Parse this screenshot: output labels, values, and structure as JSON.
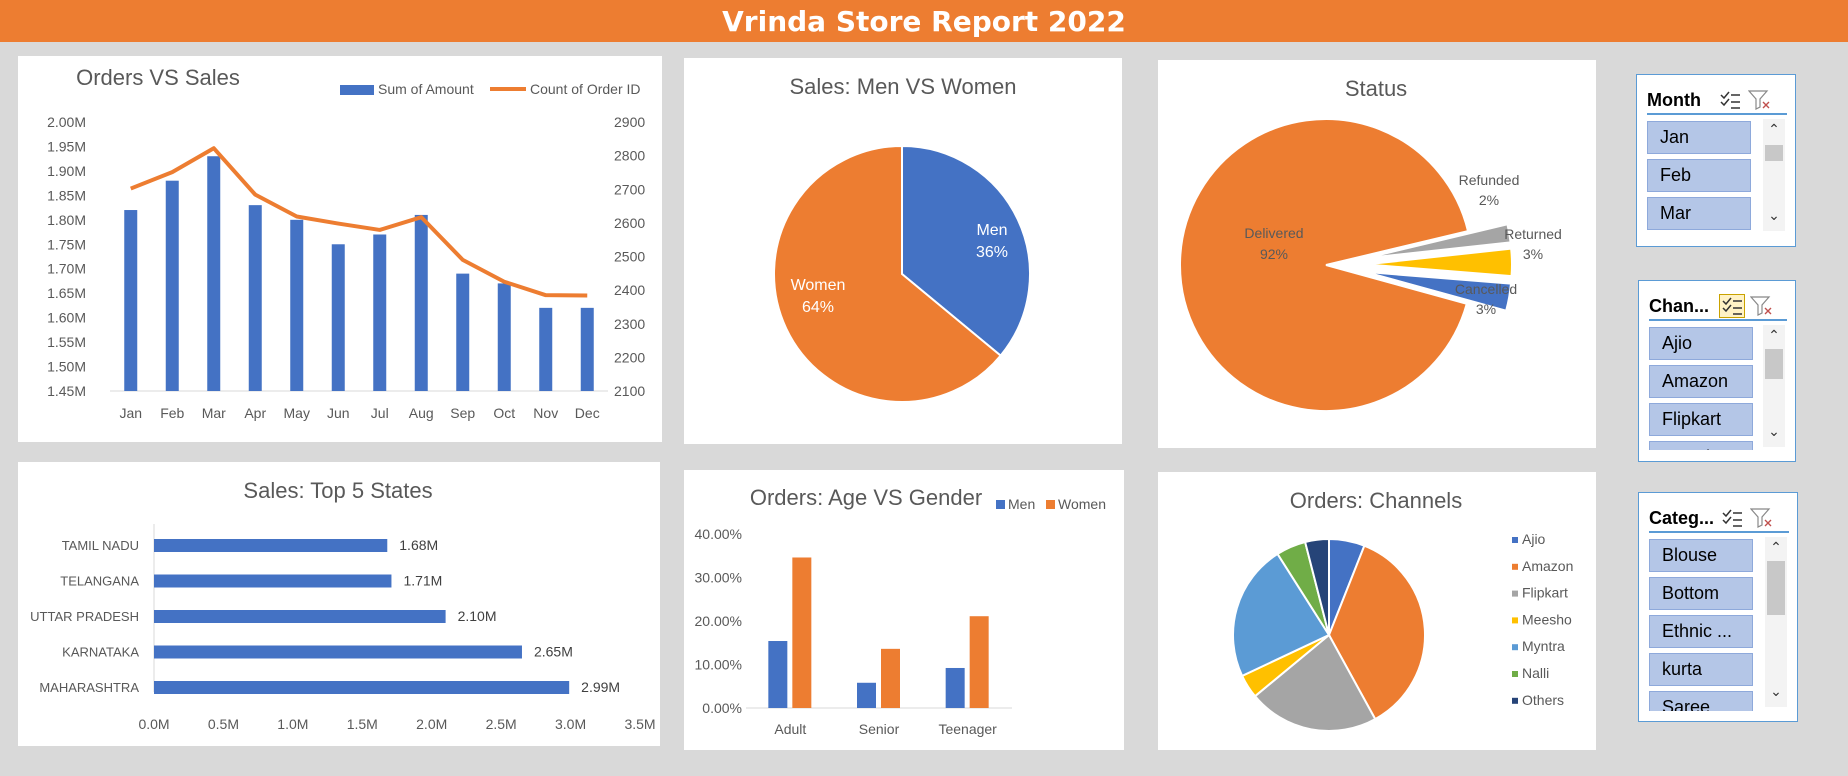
{
  "report_title": "Vrinda Store Report 2022",
  "colors": {
    "orange": "#ed7d31",
    "blue": "#4472c4",
    "gray": "#a5a5a5",
    "yellow": "#ffc000",
    "lightblue": "#5b9bd5",
    "green": "#70ad47",
    "navy": "#264478"
  },
  "orders_vs_sales": {
    "title": "Orders VS Sales",
    "legend": [
      "Sum of Amount",
      "Count of Order ID"
    ],
    "chart_data": {
      "type": "bar",
      "categories": [
        "Jan",
        "Feb",
        "Mar",
        "Apr",
        "May",
        "Jun",
        "Jul",
        "Aug",
        "Sep",
        "Oct",
        "Nov",
        "Dec"
      ],
      "series": [
        {
          "name": "Sum of Amount",
          "values": [
            1.82,
            1.88,
            1.93,
            1.83,
            1.8,
            1.75,
            1.77,
            1.81,
            1.69,
            1.67,
            1.62,
            1.62
          ]
        },
        {
          "name": "Count of Order ID",
          "type": "line",
          "values": [
            2702,
            2751,
            2822,
            2684,
            2619,
            2598,
            2579,
            2617,
            2490,
            2425,
            2385,
            2384
          ]
        }
      ],
      "left_axis": {
        "ticks": [
          "2.00M",
          "1.95M",
          "1.90M",
          "1.85M",
          "1.80M",
          "1.75M",
          "1.70M",
          "1.65M",
          "1.60M",
          "1.55M",
          "1.50M",
          "1.45M"
        ],
        "ylim": [
          1.45,
          2.0
        ]
      },
      "right_axis": {
        "ticks": [
          "2900",
          "2800",
          "2700",
          "2600",
          "2500",
          "2400",
          "2300",
          "2200",
          "2100"
        ],
        "ylim": [
          2100,
          2900
        ]
      }
    }
  },
  "men_vs_women": {
    "title": "Sales: Men VS Women",
    "chart_data": {
      "type": "pie",
      "slices": [
        {
          "label": "Men",
          "value": 36,
          "text": "36%"
        },
        {
          "label": "Women",
          "value": 64,
          "text": "64%"
        }
      ]
    }
  },
  "status": {
    "title": "Status",
    "chart_data": {
      "type": "pie",
      "slices": [
        {
          "label": "Delivered",
          "value": 92,
          "text": "92%"
        },
        {
          "label": "Refunded",
          "value": 2,
          "text": "2%"
        },
        {
          "label": "Returned",
          "value": 3,
          "text": "3%"
        },
        {
          "label": "Cancelled",
          "value": 3,
          "text": "3%"
        }
      ]
    }
  },
  "top_states": {
    "title": "Sales: Top 5 States",
    "chart_data": {
      "type": "bar",
      "orientation": "horizontal",
      "categories": [
        "TAMIL NADU",
        "TELANGANA",
        "UTTAR PRADESH",
        "KARNATAKA",
        "MAHARASHTRA"
      ],
      "values": [
        1.68,
        1.71,
        2.1,
        2.65,
        2.99
      ],
      "value_labels": [
        "1.68M",
        "1.71M",
        "2.10M",
        "2.65M",
        "2.99M"
      ],
      "x_ticks": [
        "0.0M",
        "0.5M",
        "1.0M",
        "1.5M",
        "2.0M",
        "2.5M",
        "3.0M",
        "3.5M"
      ],
      "xlim": [
        0,
        3.5
      ]
    }
  },
  "age_vs_gender": {
    "title": "Orders: Age VS Gender",
    "legend": [
      "Men",
      "Women"
    ],
    "chart_data": {
      "type": "bar",
      "categories": [
        "Adult",
        "Senior",
        "Teenager"
      ],
      "series": [
        {
          "name": "Men",
          "values": [
            15.4,
            5.8,
            9.2
          ]
        },
        {
          "name": "Women",
          "values": [
            34.6,
            13.6,
            21.1
          ]
        }
      ],
      "y_ticks": [
        "40.00%",
        "30.00%",
        "20.00%",
        "10.00%",
        "0.00%"
      ],
      "ylim": [
        0,
        40
      ]
    }
  },
  "channels": {
    "title": "Orders: Channels",
    "chart_data": {
      "type": "pie",
      "slices": [
        {
          "label": "Ajio",
          "value": 6
        },
        {
          "label": "Amazon",
          "value": 36
        },
        {
          "label": "Flipkart",
          "value": 22
        },
        {
          "label": "Meesho",
          "value": 4
        },
        {
          "label": "Myntra",
          "value": 23
        },
        {
          "label": "Nalli",
          "value": 5
        },
        {
          "label": "Others",
          "value": 4
        }
      ]
    }
  },
  "slicers": {
    "month": {
      "title": "Month",
      "items": [
        "Jan",
        "Feb",
        "Mar"
      ]
    },
    "channel": {
      "title": "Chan...",
      "items": [
        "Ajio",
        "Amazon",
        "Flipkart",
        "Meesho"
      ]
    },
    "category": {
      "title": "Categ...",
      "items": [
        "Blouse",
        "Bottom",
        "Ethnic ...",
        "kurta",
        "Saree"
      ]
    }
  }
}
